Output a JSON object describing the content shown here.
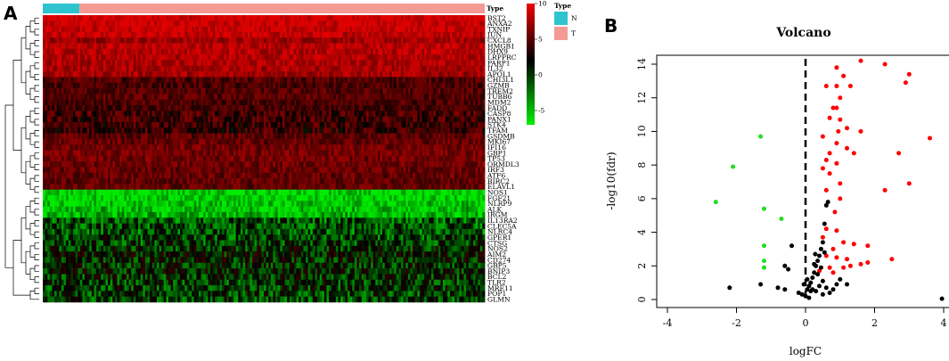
{
  "panels": {
    "a_label": "A",
    "b_label": "B"
  },
  "type_bar": {
    "label": "Type",
    "n_fraction": 0.083,
    "colors": {
      "N": "#2ec4cf",
      "T": "#f49a95"
    }
  },
  "heatmap_legend": {
    "ticks": [
      "10",
      "5",
      "0",
      "-5"
    ],
    "colors": {
      "high": "#ee0000",
      "mid": "#000000",
      "low": "#00ee00"
    },
    "type_title": "Type",
    "type_items": [
      {
        "label": "N",
        "color": "#2ec4cf"
      },
      {
        "label": "T",
        "color": "#f49a95"
      }
    ]
  },
  "chart_data": [
    {
      "type": "heatmap",
      "genes": [
        "BST2",
        "ANXA2",
        "TXNIP",
        "JUN",
        "CXCL8",
        "HMGB1",
        "DHX9",
        "LRPPRC",
        "PARP1",
        "IL32",
        "APOL1",
        "CHI3L1",
        "GZMB",
        "TREM2",
        "TUBB6",
        "MDM2",
        "FADD",
        "CASP8",
        "PANX1",
        "STK4",
        "TFAM",
        "GSDMB",
        "MKI67",
        "IFI16",
        "GBP1",
        "TP53",
        "ORMDL3",
        "IRF3",
        "ATF6",
        "BIRC2",
        "ELAVL1",
        "NOS1",
        "FGF21",
        "NLRP9",
        "ALK",
        "IRGM",
        "IL13RA2",
        "CLEC5A",
        "NLRC4",
        "GPER1",
        "CTSG",
        "NOS2",
        "AIM2",
        "CD274",
        "GBP5",
        "BNIP3",
        "BCL2",
        "TLR2",
        "MRE11",
        "POP1",
        "GLMN"
      ],
      "row_means": [
        9.5,
        9.2,
        9.0,
        8.6,
        7.0,
        8.2,
        8.0,
        7.8,
        7.6,
        7.4,
        7.2,
        3.5,
        3.0,
        3.5,
        3.8,
        3.2,
        3.0,
        2.8,
        2.6,
        2.5,
        2.4,
        4.0,
        4.5,
        5.0,
        5.2,
        5.0,
        4.8,
        4.6,
        4.4,
        4.3,
        4.2,
        -6.5,
        -6.5,
        -6.0,
        -5.5,
        -5.2,
        -2.5,
        -2.2,
        -2.5,
        -2.0,
        -1.8,
        -1.0,
        -0.5,
        -0.8,
        -1.0,
        -0.8,
        -1.2,
        -1.5,
        -1.4,
        -1.6,
        -1.8
      ],
      "legend_range": [
        -7,
        10
      ],
      "columns": {
        "N": 20,
        "T": 170
      }
    },
    {
      "type": "scatter",
      "title": "Volcano",
      "xlabel": "logFC",
      "ylabel": "-log10(fdr)",
      "xlim": [
        -4,
        4
      ],
      "ylim": [
        0,
        14
      ],
      "xticks": [
        -4,
        -2,
        0,
        2,
        4
      ],
      "yticks": [
        0,
        2,
        4,
        6,
        8,
        10,
        12,
        14
      ],
      "cutoff_line_x": 0,
      "series": [
        {
          "color": "#ff0000",
          "points": [
            [
              1.6,
              14.2
            ],
            [
              2.3,
              14
            ],
            [
              3.0,
              13.4
            ],
            [
              0.9,
              13.8
            ],
            [
              1.1,
              13.3
            ],
            [
              2.9,
              12.9
            ],
            [
              0.6,
              12.7
            ],
            [
              0.9,
              12.7
            ],
            [
              1.3,
              12.7
            ],
            [
              1.0,
              12.0
            ],
            [
              0.8,
              11.4
            ],
            [
              0.9,
              11.4
            ],
            [
              0.7,
              10.8
            ],
            [
              1.0,
              10.7
            ],
            [
              1.2,
              10.2
            ],
            [
              0.95,
              10.0
            ],
            [
              1.6,
              10.0
            ],
            [
              0.5,
              9.7
            ],
            [
              3.6,
              9.6
            ],
            [
              0.9,
              9.3
            ],
            [
              1.2,
              9.0
            ],
            [
              0.7,
              8.7
            ],
            [
              1.4,
              8.7
            ],
            [
              2.7,
              8.7
            ],
            [
              0.6,
              8.3
            ],
            [
              0.9,
              8.1
            ],
            [
              0.7,
              7.5
            ],
            [
              0.5,
              7.8
            ],
            [
              1.0,
              6.9
            ],
            [
              3.0,
              6.9
            ],
            [
              0.6,
              6.5
            ],
            [
              2.3,
              6.5
            ],
            [
              1.0,
              6.0
            ],
            [
              0.85,
              5.2
            ],
            [
              0.6,
              4.2
            ],
            [
              0.9,
              4.1
            ],
            [
              0.5,
              3.7
            ],
            [
              1.1,
              3.4
            ],
            [
              0.8,
              3.0
            ],
            [
              0.6,
              2.6
            ],
            [
              1.4,
              3.3
            ],
            [
              1.8,
              3.2
            ],
            [
              0.9,
              2.5
            ],
            [
              1.2,
              2.4
            ],
            [
              1.8,
              2.2
            ],
            [
              2.5,
              2.4
            ],
            [
              0.7,
              1.9
            ],
            [
              1.1,
              1.9
            ],
            [
              1.3,
              2.0
            ],
            [
              1.6,
              2.1
            ],
            [
              0.4,
              1.7
            ],
            [
              0.8,
              1.6
            ]
          ]
        },
        {
          "color": "#22dd22",
          "points": [
            [
              -1.3,
              9.7
            ],
            [
              -2.1,
              7.9
            ],
            [
              -2.6,
              5.8
            ],
            [
              -1.2,
              5.4
            ],
            [
              -0.7,
              4.8
            ],
            [
              -1.2,
              3.2
            ],
            [
              -1.2,
              2.3
            ],
            [
              -1.2,
              1.9
            ]
          ]
        },
        {
          "color": "#000000",
          "points": [
            [
              -2.2,
              0.7
            ],
            [
              -0.8,
              0.7
            ],
            [
              -0.6,
              0.6
            ],
            [
              -0.4,
              3.2
            ],
            [
              -0.5,
              1.8
            ],
            [
              -0.6,
              2.0
            ],
            [
              -1.3,
              0.9
            ],
            [
              -0.2,
              0.4
            ],
            [
              -0.1,
              0.3
            ],
            [
              0.0,
              0.2
            ],
            [
              0.05,
              0.6
            ],
            [
              0.1,
              0.8
            ],
            [
              0.15,
              1.0
            ],
            [
              0.2,
              1.3
            ],
            [
              0.25,
              1.6
            ],
            [
              0.3,
              2.0
            ],
            [
              0.35,
              2.3
            ],
            [
              0.4,
              2.6
            ],
            [
              0.45,
              3.0
            ],
            [
              0.5,
              3.4
            ],
            [
              0.55,
              4.5
            ],
            [
              0.6,
              5.6
            ],
            [
              0.65,
              5.8
            ],
            [
              0.3,
              0.5
            ],
            [
              0.4,
              0.8
            ],
            [
              0.5,
              1.1
            ],
            [
              0.6,
              0.7
            ],
            [
              0.7,
              0.4
            ],
            [
              0.8,
              0.6
            ],
            [
              0.9,
              0.9
            ],
            [
              1.0,
              1.2
            ],
            [
              1.2,
              0.9
            ],
            [
              0.35,
              1.5
            ],
            [
              0.2,
              0.6
            ],
            [
              0.1,
              0.1
            ],
            [
              0.45,
              1.9
            ],
            [
              0.25,
              2.1
            ],
            [
              0.55,
              2.8
            ],
            [
              0.15,
              0.5
            ],
            [
              0.5,
              0.3
            ],
            [
              3.95,
              0.05
            ],
            [
              0.05,
              1.2
            ],
            [
              -0.05,
              0.9
            ],
            [
              0.28,
              2.7
            ]
          ]
        }
      ]
    }
  ]
}
